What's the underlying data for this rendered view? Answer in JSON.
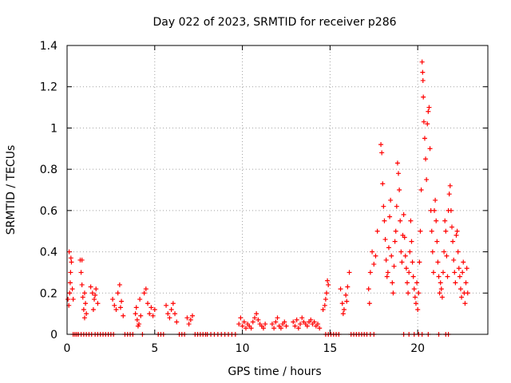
{
  "chart_data": {
    "type": "scatter",
    "title": "Day 022 of 2023, SRMTID for receiver p286",
    "xlabel": "GPS time / hours",
    "ylabel": "SRMTID / TECUs",
    "xlim": [
      0,
      24
    ],
    "ylim": [
      0,
      1.4
    ],
    "x_ticks": [
      0,
      5,
      10,
      15,
      20
    ],
    "x_tick_labels": [
      "0",
      "5",
      "10",
      "15",
      "20"
    ],
    "y_ticks": [
      0,
      0.2,
      0.4,
      0.6,
      0.8,
      1.0,
      1.2,
      1.4
    ],
    "y_tick_labels": [
      "0",
      "0.2",
      "0.4",
      "0.6",
      "0.8",
      "1",
      "1.2",
      "1.4"
    ],
    "grid": true,
    "marker": "+",
    "color": "#ff0000",
    "series": [
      {
        "name": "SRMTID",
        "points": [
          [
            0.05,
            0.17
          ],
          [
            0.1,
            0.14
          ],
          [
            0.15,
            0.2
          ],
          [
            0.18,
            0.25
          ],
          [
            0.2,
            0.3
          ],
          [
            0.22,
            0.37
          ],
          [
            0.25,
            0.35
          ],
          [
            0.3,
            0.22
          ],
          [
            0.35,
            0.17
          ],
          [
            0.12,
            0.4
          ],
          [
            0.75,
            0.36
          ],
          [
            0.8,
            0.3
          ],
          [
            0.85,
            0.24
          ],
          [
            0.9,
            0.18
          ],
          [
            0.95,
            0.12
          ],
          [
            1.0,
            0.08
          ],
          [
            1.05,
            0.15
          ],
          [
            1.1,
            0.1
          ],
          [
            0.85,
            0.36
          ],
          [
            1.0,
            0.2
          ],
          [
            1.35,
            0.23
          ],
          [
            1.45,
            0.2
          ],
          [
            1.55,
            0.17
          ],
          [
            1.65,
            0.22
          ],
          [
            1.75,
            0.15
          ],
          [
            1.5,
            0.12
          ],
          [
            1.6,
            0.19
          ],
          [
            2.6,
            0.17
          ],
          [
            2.7,
            0.14
          ],
          [
            2.8,
            0.12
          ],
          [
            2.9,
            0.2
          ],
          [
            3.0,
            0.24
          ],
          [
            3.1,
            0.16
          ],
          [
            3.2,
            0.09
          ],
          [
            3.05,
            0.13
          ],
          [
            3.9,
            0.1
          ],
          [
            4.0,
            0.07
          ],
          [
            4.1,
            0.05
          ],
          [
            4.2,
            0.09
          ],
          [
            3.95,
            0.13
          ],
          [
            4.15,
            0.17
          ],
          [
            4.05,
            0.04
          ],
          [
            4.4,
            0.2
          ],
          [
            4.5,
            0.22
          ],
          [
            4.6,
            0.15
          ],
          [
            4.7,
            0.1
          ],
          [
            4.8,
            0.13
          ],
          [
            4.9,
            0.09
          ],
          [
            5.0,
            0.12
          ],
          [
            5.65,
            0.14
          ],
          [
            5.75,
            0.1
          ],
          [
            5.85,
            0.08
          ],
          [
            5.95,
            0.12
          ],
          [
            6.05,
            0.15
          ],
          [
            6.15,
            0.1
          ],
          [
            6.25,
            0.06
          ],
          [
            6.85,
            0.08
          ],
          [
            6.95,
            0.05
          ],
          [
            7.05,
            0.07
          ],
          [
            7.15,
            0.09
          ],
          [
            9.8,
            0.05
          ],
          [
            9.9,
            0.08
          ],
          [
            10.0,
            0.04
          ],
          [
            10.1,
            0.06
          ],
          [
            10.2,
            0.03
          ],
          [
            10.3,
            0.05
          ],
          [
            10.4,
            0.04
          ],
          [
            10.5,
            0.03
          ],
          [
            10.6,
            0.06
          ],
          [
            10.7,
            0.08
          ],
          [
            10.8,
            0.1
          ],
          [
            10.9,
            0.07
          ],
          [
            11.0,
            0.05
          ],
          [
            11.1,
            0.04
          ],
          [
            11.2,
            0.03
          ],
          [
            11.3,
            0.05
          ],
          [
            11.7,
            0.05
          ],
          [
            11.8,
            0.03
          ],
          [
            11.9,
            0.06
          ],
          [
            12.0,
            0.08
          ],
          [
            12.1,
            0.04
          ],
          [
            12.2,
            0.03
          ],
          [
            12.3,
            0.05
          ],
          [
            12.4,
            0.06
          ],
          [
            12.5,
            0.04
          ],
          [
            12.9,
            0.06
          ],
          [
            13.0,
            0.04
          ],
          [
            13.1,
            0.07
          ],
          [
            13.2,
            0.03
          ],
          [
            13.3,
            0.05
          ],
          [
            13.4,
            0.08
          ],
          [
            13.5,
            0.06
          ],
          [
            13.6,
            0.05
          ],
          [
            13.7,
            0.04
          ],
          [
            13.8,
            0.06
          ],
          [
            13.9,
            0.07
          ],
          [
            14.0,
            0.05
          ],
          [
            14.1,
            0.06
          ],
          [
            14.2,
            0.04
          ],
          [
            14.3,
            0.05
          ],
          [
            14.4,
            0.03
          ],
          [
            14.6,
            0.12
          ],
          [
            14.7,
            0.14
          ],
          [
            14.8,
            0.2
          ],
          [
            14.9,
            0.24
          ],
          [
            14.75,
            0.17
          ],
          [
            14.85,
            0.26
          ],
          [
            15.6,
            0.22
          ],
          [
            15.7,
            0.15
          ],
          [
            15.8,
            0.12
          ],
          [
            15.9,
            0.19
          ],
          [
            16.0,
            0.23
          ],
          [
            16.1,
            0.3
          ],
          [
            15.75,
            0.1
          ],
          [
            15.95,
            0.16
          ],
          [
            17.2,
            0.22
          ],
          [
            17.3,
            0.3
          ],
          [
            17.4,
            0.4
          ],
          [
            17.5,
            0.34
          ],
          [
            17.6,
            0.38
          ],
          [
            17.7,
            0.5
          ],
          [
            17.25,
            0.15
          ],
          [
            17.9,
            0.92
          ],
          [
            17.95,
            0.88
          ],
          [
            18.0,
            0.73
          ],
          [
            18.05,
            0.62
          ],
          [
            18.1,
            0.55
          ],
          [
            18.15,
            0.46
          ],
          [
            18.2,
            0.36
          ],
          [
            18.25,
            0.28
          ],
          [
            18.3,
            0.3
          ],
          [
            18.35,
            0.42
          ],
          [
            18.4,
            0.57
          ],
          [
            18.45,
            0.65
          ],
          [
            18.5,
            0.38
          ],
          [
            18.55,
            0.25
          ],
          [
            18.6,
            0.2
          ],
          [
            18.65,
            0.33
          ],
          [
            18.7,
            0.45
          ],
          [
            18.75,
            0.5
          ],
          [
            18.8,
            0.62
          ],
          [
            18.85,
            0.83
          ],
          [
            18.9,
            0.78
          ],
          [
            18.95,
            0.7
          ],
          [
            19.0,
            0.55
          ],
          [
            19.05,
            0.4
          ],
          [
            19.1,
            0.35
          ],
          [
            19.15,
            0.48
          ],
          [
            19.2,
            0.58
          ],
          [
            19.25,
            0.47
          ],
          [
            19.3,
            0.38
          ],
          [
            19.35,
            0.32
          ],
          [
            19.4,
            0.25
          ],
          [
            19.45,
            0.2
          ],
          [
            19.5,
            0.3
          ],
          [
            19.55,
            0.4
          ],
          [
            19.6,
            0.55
          ],
          [
            19.65,
            0.45
          ],
          [
            19.7,
            0.35
          ],
          [
            19.75,
            0.28
          ],
          [
            19.8,
            0.22
          ],
          [
            19.85,
            0.18
          ],
          [
            19.9,
            0.15
          ],
          [
            19.95,
            0.25
          ],
          [
            20.0,
            0.12
          ],
          [
            20.05,
            0.2
          ],
          [
            20.1,
            0.35
          ],
          [
            20.15,
            0.5
          ],
          [
            20.2,
            0.7
          ],
          [
            20.25,
            1.32
          ],
          [
            20.28,
            1.27
          ],
          [
            20.3,
            1.23
          ],
          [
            20.32,
            1.15
          ],
          [
            20.35,
            1.03
          ],
          [
            20.4,
            0.95
          ],
          [
            20.45,
            0.85
          ],
          [
            20.5,
            0.75
          ],
          [
            20.55,
            1.02
          ],
          [
            20.6,
            1.08
          ],
          [
            20.65,
            1.1
          ],
          [
            20.7,
            0.9
          ],
          [
            20.75,
            0.6
          ],
          [
            20.8,
            0.5
          ],
          [
            20.85,
            0.4
          ],
          [
            20.9,
            0.3
          ],
          [
            20.95,
            0.6
          ],
          [
            21.0,
            0.65
          ],
          [
            21.05,
            0.55
          ],
          [
            21.1,
            0.45
          ],
          [
            21.15,
            0.35
          ],
          [
            21.2,
            0.28
          ],
          [
            21.25,
            0.2
          ],
          [
            21.3,
            0.25
          ],
          [
            21.35,
            0.22
          ],
          [
            21.4,
            0.18
          ],
          [
            21.45,
            0.3
          ],
          [
            21.5,
            0.4
          ],
          [
            21.55,
            0.55
          ],
          [
            21.6,
            0.5
          ],
          [
            21.65,
            0.38
          ],
          [
            21.7,
            0.28
          ],
          [
            21.75,
            0.6
          ],
          [
            21.8,
            0.68
          ],
          [
            21.85,
            0.72
          ],
          [
            21.9,
            0.6
          ],
          [
            21.95,
            0.52
          ],
          [
            22.0,
            0.45
          ],
          [
            22.05,
            0.36
          ],
          [
            22.1,
            0.3
          ],
          [
            22.15,
            0.25
          ],
          [
            22.2,
            0.48
          ],
          [
            22.25,
            0.5
          ],
          [
            22.3,
            0.4
          ],
          [
            22.35,
            0.32
          ],
          [
            22.4,
            0.28
          ],
          [
            22.45,
            0.22
          ],
          [
            22.5,
            0.18
          ],
          [
            22.55,
            0.3
          ],
          [
            22.6,
            0.35
          ],
          [
            22.65,
            0.2
          ],
          [
            22.7,
            0.15
          ],
          [
            22.75,
            0.25
          ],
          [
            22.8,
            0.32
          ],
          [
            22.85,
            0.2
          ]
        ],
        "zero_points": [
          0.35,
          0.45,
          0.55,
          0.65,
          0.8,
          0.95,
          1.1,
          1.25,
          1.4,
          1.6,
          1.75,
          1.9,
          2.05,
          2.2,
          2.35,
          2.5,
          2.65,
          3.3,
          3.45,
          3.6,
          3.75,
          4.3,
          5.2,
          5.35,
          5.5,
          6.4,
          6.55,
          6.7,
          7.3,
          7.45,
          7.6,
          7.75,
          7.9,
          8.0,
          8.2,
          8.4,
          8.6,
          8.8,
          9.0,
          9.2,
          9.4,
          9.6,
          14.75,
          14.9,
          15.05,
          15.2,
          15.35,
          15.5,
          16.2,
          16.35,
          16.5,
          16.65,
          16.8,
          16.95,
          17.1,
          17.3,
          17.5,
          19.2,
          19.5,
          19.8,
          20.05,
          20.25,
          20.6,
          21.2,
          21.6,
          21.75
        ]
      }
    ]
  }
}
